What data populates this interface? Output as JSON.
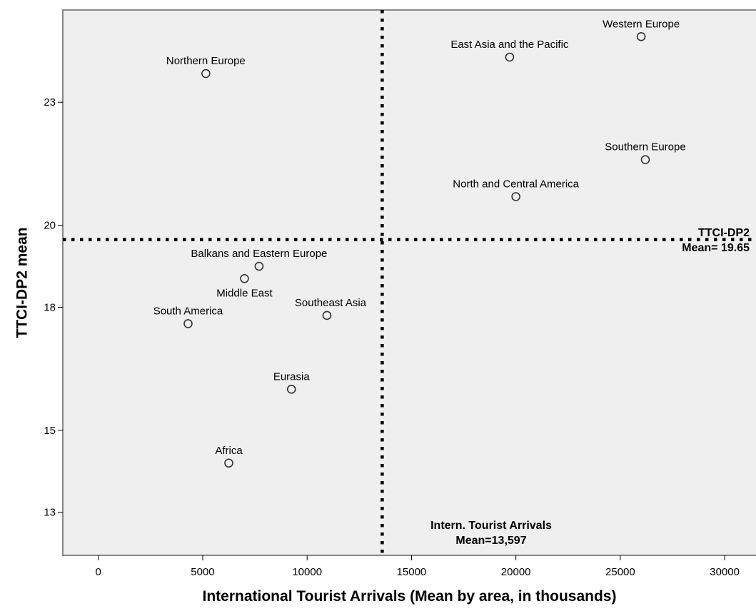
{
  "chart_data": {
    "type": "scatter",
    "xlabel": "International Tourist Arrivals (Mean by area, in thousands)",
    "ylabel": "TTCI-DP2 mean",
    "xlim": [
      -1700,
      31500
    ],
    "ylim": [
      11.95,
      25.25
    ],
    "x_ticks": [
      0,
      5000,
      10000,
      15000,
      20000,
      25000,
      30000
    ],
    "y_ticks": [
      13,
      15,
      18,
      20,
      23
    ],
    "grid": false,
    "points": [
      {
        "label": "Western Europe",
        "x": 26000,
        "y": 24.6
      },
      {
        "label": "East Asia and the Pacific",
        "x": 19700,
        "y": 24.1
      },
      {
        "label": "Northern Europe",
        "x": 5150,
        "y": 23.7
      },
      {
        "label": "Southern Europe",
        "x": 26200,
        "y": 21.6
      },
      {
        "label": "North and Central America",
        "x": 20000,
        "y": 20.7
      },
      {
        "label": "Balkans and Eastern Europe",
        "x": 7700,
        "y": 19.0
      },
      {
        "label": "Middle East",
        "x": 7000,
        "y": 18.7
      },
      {
        "label": "Southeast Asia",
        "x": 10950,
        "y": 17.8
      },
      {
        "label": "South America",
        "x": 4300,
        "y": 17.6
      },
      {
        "label": "Eurasia",
        "x": 9250,
        "y": 16.0
      },
      {
        "label": "Africa",
        "x": 6250,
        "y": 14.2
      }
    ],
    "reference_lines": [
      {
        "axis": "x",
        "value": 13597,
        "label_line1": "Intern. Tourist Arrivals",
        "label_line2": "Mean=13,597"
      },
      {
        "axis": "y",
        "value": 19.65,
        "label_line1": "TTCI-DP2",
        "label_line2": "Mean= 19.65"
      }
    ],
    "colors": {
      "plot_background": "#efefef",
      "frame": "#888888",
      "marker": "#333333"
    }
  }
}
